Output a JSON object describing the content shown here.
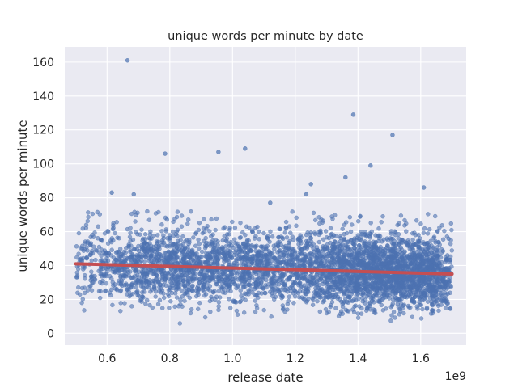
{
  "chart_data": {
    "type": "scatter",
    "title": "unique words per minute by date",
    "xlabel": "release date",
    "ylabel": "unique words per minute",
    "x_offset_label": "1e9",
    "xlim": [
      0.465,
      1.745
    ],
    "ylim": [
      -7,
      169
    ],
    "x_ticks": [
      0.6,
      0.8,
      1.0,
      1.2,
      1.4,
      1.6
    ],
    "x_tick_labels": [
      "0.6",
      "0.8",
      "1.0",
      "1.2",
      "1.4",
      "1.6"
    ],
    "y_ticks": [
      0,
      20,
      40,
      60,
      80,
      100,
      120,
      140,
      160
    ],
    "y_tick_labels": [
      "0",
      "20",
      "40",
      "60",
      "80",
      "100",
      "120",
      "140",
      "160"
    ],
    "grid": true,
    "background_color": "#eaeaf2",
    "point_color": "#4c72b0",
    "trend_color": "#c44e52",
    "trend_line": {
      "x": [
        0.5,
        1.7
      ],
      "y": [
        41,
        35
      ]
    },
    "outliers": {
      "x": [
        0.665,
        0.785,
        0.955,
        1.04,
        1.385,
        1.51,
        1.36,
        1.44,
        1.25,
        1.235,
        1.61,
        0.615,
        0.685,
        1.12
      ],
      "y": [
        161,
        106,
        107,
        109,
        129,
        117,
        92,
        99,
        88,
        82,
        86,
        83,
        82,
        77
      ]
    },
    "density_profile": [
      {
        "x": 0.5,
        "w": 0.3
      },
      {
        "x": 0.6,
        "w": 0.55
      },
      {
        "x": 0.7,
        "w": 0.75
      },
      {
        "x": 0.8,
        "w": 1.0
      },
      {
        "x": 0.9,
        "w": 1.0
      },
      {
        "x": 1.0,
        "w": 0.95
      },
      {
        "x": 1.1,
        "w": 0.9
      },
      {
        "x": 1.2,
        "w": 0.95
      },
      {
        "x": 1.3,
        "w": 1.2
      },
      {
        "x": 1.4,
        "w": 1.7
      },
      {
        "x": 1.5,
        "w": 2.0
      },
      {
        "x": 1.6,
        "w": 1.8
      },
      {
        "x": 1.7,
        "w": 1.0
      }
    ]
  }
}
